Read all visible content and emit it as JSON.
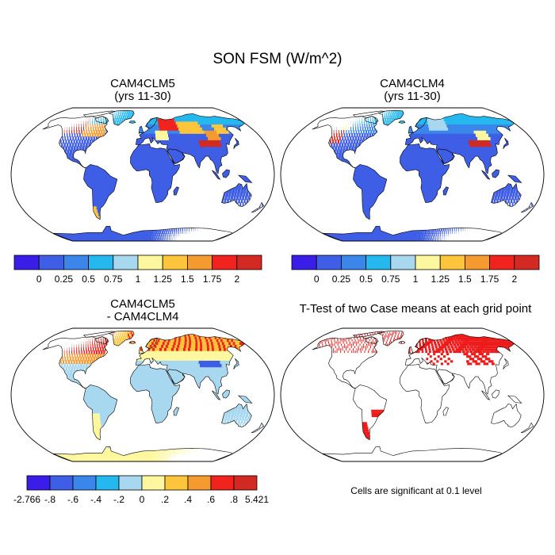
{
  "figure": {
    "title": "SON FSM (W/m^2)",
    "panels": [
      {
        "id": "p1",
        "title": "CAM4CLM5\n(yrs 11-30)",
        "style": "field_clm5"
      },
      {
        "id": "p2",
        "title": "CAM4CLM4\n(yrs 11-30)",
        "style": "field_clm4"
      },
      {
        "id": "p3",
        "title": "CAM4CLM5\n- CAM4CLM4",
        "style": "diff"
      },
      {
        "id": "p4",
        "title": "T-Test of two Case means at each grid point",
        "style": "ttest"
      }
    ],
    "colorbar_field": {
      "colors": [
        "#3b1de8",
        "#3f5ee6",
        "#3a86ea",
        "#25b8ee",
        "#a7d8ef",
        "#fdf7a0",
        "#fcc53c",
        "#f59a2e",
        "#f0231e",
        "#d22a22"
      ],
      "labels": [
        "0",
        "0.25",
        "0.5",
        "0.75",
        "1",
        "1.25",
        "1.5",
        "1.75",
        "2"
      ]
    },
    "colorbar_diff": {
      "colors": [
        "#3b1de8",
        "#3f5ee6",
        "#3a86ea",
        "#25b8ee",
        "#a7d8ef",
        "#fdf7a0",
        "#fcc53c",
        "#f59a2e",
        "#f0231e",
        "#d22a22"
      ],
      "labels": [
        "-2.766",
        "-.8",
        "-.6",
        "-.4",
        "-.2",
        "0",
        ".2",
        ".4",
        ".6",
        ".8",
        "5.421"
      ]
    },
    "ttest_note": "Cells are significant at 0.1 level"
  }
}
